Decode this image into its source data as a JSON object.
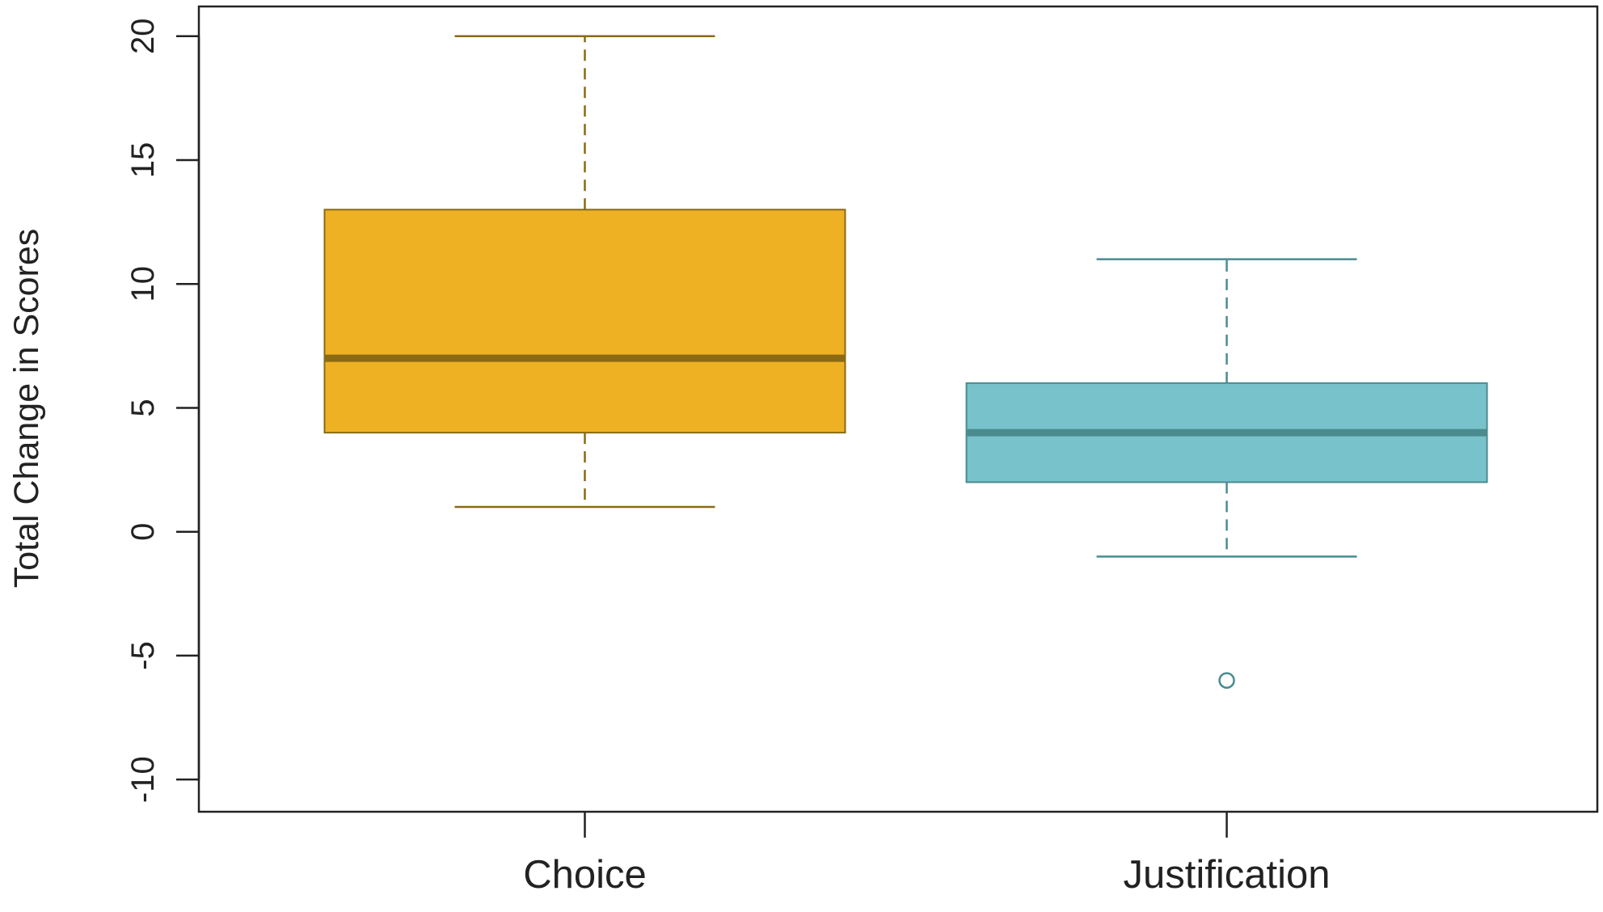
{
  "chart_data": {
    "type": "boxplot",
    "title": "",
    "xlabel": "",
    "ylabel": "Total Change in Scores",
    "ylim": [
      -11.3,
      21.2
    ],
    "yticks": [
      -10,
      -5,
      0,
      5,
      10,
      15,
      20
    ],
    "ytick_labels": [
      "-10",
      "-5",
      "0",
      "5",
      "10",
      "15",
      "20"
    ],
    "grid": false,
    "legend": "none",
    "categories": [
      "Choice",
      "Justification"
    ],
    "series": [
      {
        "category": "Choice",
        "whisker_low": 1,
        "q1": 4,
        "median": 7,
        "q3": 13,
        "whisker_high": 20,
        "outliers": [],
        "fill_color": "#EFB124",
        "line_color": "#8A6A12",
        "median_color": "#8A6A12"
      },
      {
        "category": "Justification",
        "whisker_low": -1,
        "q1": 2,
        "median": 4,
        "q3": 6,
        "whisker_high": 11,
        "outliers": [
          -6
        ],
        "fill_color": "#78C3CB",
        "line_color": "#4A8B90",
        "median_color": "#4A8B90"
      }
    ]
  }
}
